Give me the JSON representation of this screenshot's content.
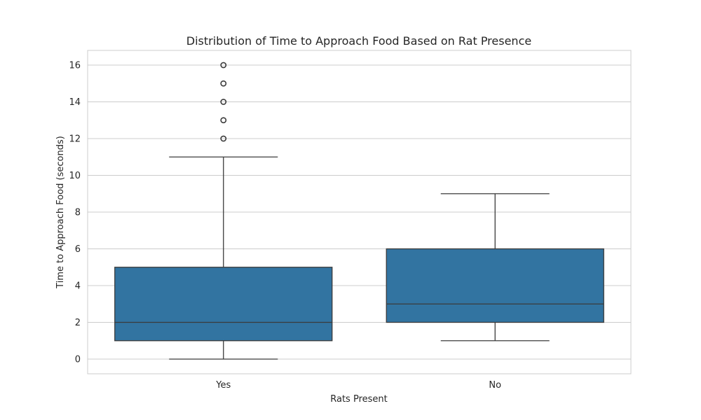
{
  "chart_data": {
    "type": "box",
    "title": "Distribution of Time to Approach Food Based on Rat Presence",
    "xlabel": "Rats Present",
    "ylabel": "Time to Approach Food (seconds)",
    "categories": [
      "Yes",
      "No"
    ],
    "ylim": [
      -0.8,
      16.8
    ],
    "yticks": [
      0,
      2,
      4,
      6,
      8,
      10,
      12,
      14,
      16
    ],
    "grid": "horizontal",
    "box_color": "#3274a1",
    "edge_color": "#3b3b3b",
    "grid_color": "#cccccc",
    "boxes": [
      {
        "category": "Yes",
        "whisker_low": 0,
        "q1": 1,
        "median": 2,
        "q3": 5,
        "whisker_high": 11,
        "outliers": [
          12,
          13,
          14,
          15,
          16
        ]
      },
      {
        "category": "No",
        "whisker_low": 1,
        "q1": 2,
        "median": 3,
        "q3": 6,
        "whisker_high": 9,
        "outliers": []
      }
    ]
  }
}
